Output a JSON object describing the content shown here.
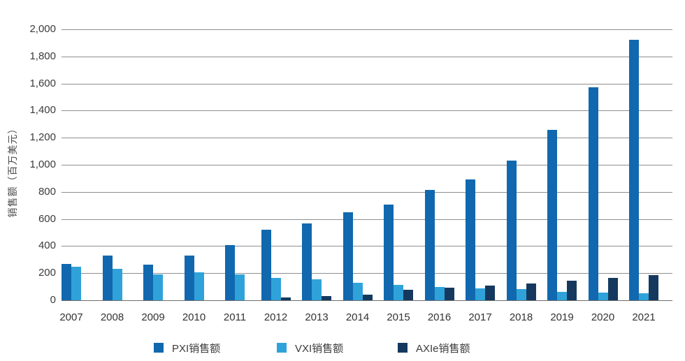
{
  "chart_data": {
    "type": "bar",
    "title": "",
    "xlabel": "",
    "ylabel": "销售额（百万美元）",
    "ylim": [
      0,
      2000
    ],
    "ytick_step": 200,
    "yticklabels": [
      "0",
      "200",
      "400",
      "600",
      "800",
      "1,000",
      "1,200",
      "1,400",
      "1,600",
      "1,800",
      "2,000"
    ],
    "grid": true,
    "legend_position": "bottom",
    "categories": [
      "2007",
      "2008",
      "2009",
      "2010",
      "2011",
      "2012",
      "2013",
      "2014",
      "2015",
      "2016",
      "2017",
      "2018",
      "2019",
      "2020",
      "2021"
    ],
    "series": [
      {
        "name": "PXI销售额",
        "color": "#1168af",
        "values": [
          270,
          330,
          262,
          330,
          405,
          520,
          565,
          650,
          705,
          815,
          890,
          1030,
          1260,
          1570,
          1925
        ]
      },
      {
        "name": "VXI销售额",
        "color": "#2fa3d9",
        "values": [
          248,
          233,
          193,
          206,
          190,
          165,
          155,
          130,
          115,
          98,
          90,
          80,
          60,
          55,
          52
        ]
      },
      {
        "name": "AXIe销售额",
        "color": "#15395e",
        "values": [
          null,
          null,
          null,
          null,
          null,
          20,
          30,
          40,
          75,
          92,
          110,
          125,
          145,
          165,
          185
        ]
      }
    ]
  },
  "colors": {
    "gridline": "#8f8f8f",
    "baseline": "#6e6e6e",
    "tick_text": "#3b3b3b",
    "axis_title_text": "#4a4a4a"
  }
}
